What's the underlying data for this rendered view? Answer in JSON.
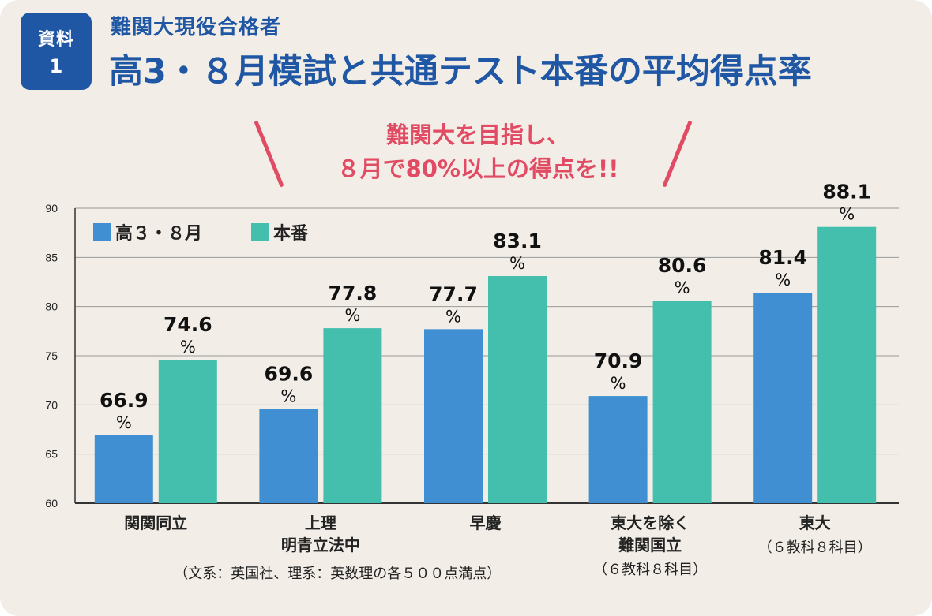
{
  "badge": {
    "line1": "資料",
    "line2": "1"
  },
  "header": {
    "subtitle": "難関大現役合格者",
    "title": "高3・８月模試と共通テスト本番の平均得点率"
  },
  "callout": {
    "line1": "難関大を目指し、",
    "line2": "８月で80%以上の得点を!!"
  },
  "colors": {
    "series1": "#3f8fd2",
    "series2": "#44bfad",
    "brand": "#1f57a4",
    "accent": "#e14b63",
    "background": "#f2eee7"
  },
  "chart_data": {
    "type": "bar",
    "categories": [
      "関関同立",
      "上理\n明青立法中",
      "早慶",
      "東大を除く\n難関国立",
      "東大"
    ],
    "category_notes": [
      "（文系：英国社、理系：英数理の各５００点満点）",
      "",
      "",
      "（６教科８科目）",
      "（６教科８科目）"
    ],
    "series": [
      {
        "name": "高３・８月",
        "values": [
          66.9,
          69.6,
          77.7,
          70.9,
          81.4
        ]
      },
      {
        "name": "本番",
        "values": [
          74.6,
          77.8,
          83.1,
          80.6,
          88.1
        ]
      }
    ],
    "value_unit": "%",
    "ylim": [
      60,
      90
    ],
    "yticks": [
      60,
      65,
      70,
      75,
      80,
      85,
      90
    ],
    "grid": true,
    "legend_position": "top-left"
  }
}
